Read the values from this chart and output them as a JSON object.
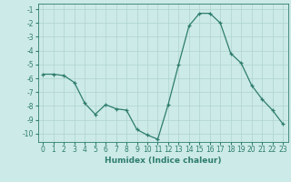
{
  "x": [
    0,
    1,
    2,
    3,
    4,
    5,
    6,
    7,
    8,
    9,
    10,
    11,
    12,
    13,
    14,
    15,
    16,
    17,
    18,
    19,
    20,
    21,
    22,
    23
  ],
  "y": [
    -5.7,
    -5.7,
    -5.8,
    -6.3,
    -7.8,
    -8.6,
    -7.9,
    -8.2,
    -8.3,
    -9.7,
    -10.1,
    -10.4,
    -7.9,
    -5.0,
    -2.2,
    -1.3,
    -1.3,
    -2.0,
    -4.2,
    -4.9,
    -6.5,
    -7.5,
    -8.3,
    -9.3
  ],
  "xlabel": "Humidex (Indice chaleur)",
  "ylabel": "",
  "line_color": "#2e7d6e",
  "marker": "+",
  "bg_color": "#cceae7",
  "grid_color": "#aed4d0",
  "xlim": [
    -0.5,
    23.5
  ],
  "ylim": [
    -10.6,
    -0.6
  ],
  "yticks": [
    -1,
    -2,
    -3,
    -4,
    -5,
    -6,
    -7,
    -8,
    -9,
    -10
  ],
  "xticks": [
    0,
    1,
    2,
    3,
    4,
    5,
    6,
    7,
    8,
    9,
    10,
    11,
    12,
    13,
    14,
    15,
    16,
    17,
    18,
    19,
    20,
    21,
    22,
    23
  ]
}
